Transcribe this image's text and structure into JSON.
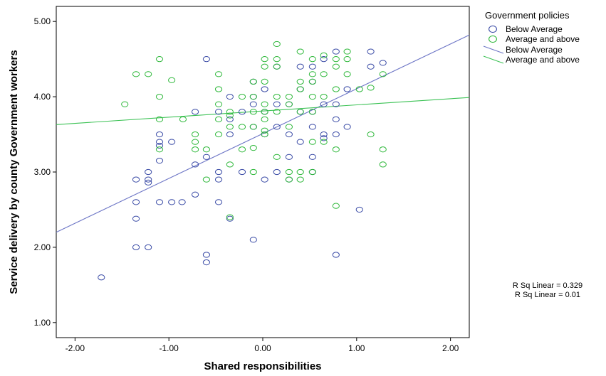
{
  "chart_data": {
    "type": "scatter",
    "xlabel": "Shared responsibilities",
    "ylabel": "Service delivery by county Government workers",
    "xlim": [
      -2.2,
      2.2
    ],
    "ylim": [
      0.8,
      5.2
    ],
    "x_ticks": [
      -2,
      -1,
      0,
      1,
      2
    ],
    "y_ticks": [
      1,
      2,
      3,
      4,
      5
    ],
    "x_tick_labels": [
      "-2.00",
      "-1.00",
      "0.00",
      "1.00",
      "2.00"
    ],
    "y_tick_labels": [
      "1.00",
      "2.00",
      "3.00",
      "4.00",
      "5.00"
    ],
    "grid": false,
    "legend_position": "top-right",
    "legend": {
      "title": "Government policies",
      "entries": [
        {
          "label": "Below Average",
          "kind": "marker",
          "color": "#3a4ba6"
        },
        {
          "label": "Average and above",
          "kind": "marker",
          "color": "#2eb83a"
        },
        {
          "label": "Below Average",
          "kind": "line",
          "color": "#6d76c6"
        },
        {
          "label": "Average and above",
          "kind": "line",
          "color": "#3cc255"
        }
      ]
    },
    "r_squared_labels": [
      "R Sq Linear = 0.329",
      "R Sq Linear = 0.01"
    ],
    "series": [
      {
        "name": "Below Average",
        "color": "#3a4ba6",
        "fit_line": {
          "x": [
            -2.2,
            2.2
          ],
          "y": [
            2.2,
            4.82
          ]
        },
        "points": [
          [
            -1.72,
            1.6
          ],
          [
            -1.35,
            2.9
          ],
          [
            -1.35,
            2.6
          ],
          [
            -1.35,
            2.38
          ],
          [
            -1.35,
            2.0
          ],
          [
            -1.22,
            3.0
          ],
          [
            -1.22,
            2.9
          ],
          [
            -1.22,
            2.86
          ],
          [
            -1.22,
            2.0
          ],
          [
            -1.1,
            3.5
          ],
          [
            -1.1,
            3.4
          ],
          [
            -1.1,
            3.35
          ],
          [
            -1.1,
            3.15
          ],
          [
            -1.1,
            2.6
          ],
          [
            -0.97,
            3.4
          ],
          [
            -0.97,
            2.6
          ],
          [
            -0.86,
            2.6
          ],
          [
            -0.72,
            3.8
          ],
          [
            -0.72,
            3.1
          ],
          [
            -0.72,
            2.7
          ],
          [
            -0.6,
            4.5
          ],
          [
            -0.6,
            3.2
          ],
          [
            -0.6,
            1.9
          ],
          [
            -0.6,
            1.8
          ],
          [
            -0.47,
            3.8
          ],
          [
            -0.47,
            3.0
          ],
          [
            -0.47,
            2.9
          ],
          [
            -0.47,
            2.6
          ],
          [
            -0.35,
            4.0
          ],
          [
            -0.35,
            3.7
          ],
          [
            -0.35,
            3.5
          ],
          [
            -0.35,
            2.38
          ],
          [
            -0.22,
            3.8
          ],
          [
            -0.22,
            3.0
          ],
          [
            -0.1,
            4.2
          ],
          [
            -0.1,
            4.0
          ],
          [
            -0.1,
            3.9
          ],
          [
            -0.1,
            3.6
          ],
          [
            -0.1,
            2.1
          ],
          [
            0.02,
            4.1
          ],
          [
            0.02,
            3.8
          ],
          [
            0.02,
            3.5
          ],
          [
            0.02,
            2.9
          ],
          [
            0.15,
            4.4
          ],
          [
            0.15,
            3.9
          ],
          [
            0.15,
            3.6
          ],
          [
            0.15,
            3.0
          ],
          [
            0.28,
            3.9
          ],
          [
            0.28,
            3.5
          ],
          [
            0.28,
            3.2
          ],
          [
            0.28,
            2.9
          ],
          [
            0.4,
            4.4
          ],
          [
            0.4,
            4.1
          ],
          [
            0.4,
            3.8
          ],
          [
            0.4,
            3.4
          ],
          [
            0.53,
            4.4
          ],
          [
            0.53,
            4.2
          ],
          [
            0.53,
            3.8
          ],
          [
            0.53,
            3.6
          ],
          [
            0.53,
            3.2
          ],
          [
            0.53,
            3.0
          ],
          [
            0.65,
            4.5
          ],
          [
            0.65,
            3.9
          ],
          [
            0.65,
            3.5
          ],
          [
            0.65,
            3.45
          ],
          [
            0.78,
            4.6
          ],
          [
            0.78,
            3.9
          ],
          [
            0.78,
            3.7
          ],
          [
            0.78,
            3.5
          ],
          [
            0.78,
            1.9
          ],
          [
            0.9,
            4.1
          ],
          [
            0.9,
            3.6
          ],
          [
            1.03,
            2.5
          ],
          [
            1.15,
            4.6
          ],
          [
            1.15,
            4.4
          ],
          [
            1.28,
            4.45
          ]
        ]
      },
      {
        "name": "Average and above",
        "color": "#2eb83a",
        "fit_line": {
          "x": [
            -2.2,
            2.2
          ],
          "y": [
            3.63,
            3.99
          ]
        },
        "points": [
          [
            -1.47,
            3.9
          ],
          [
            -1.35,
            4.3
          ],
          [
            -1.22,
            4.3
          ],
          [
            -1.1,
            4.5
          ],
          [
            -1.1,
            4.0
          ],
          [
            -1.1,
            3.7
          ],
          [
            -1.1,
            3.3
          ],
          [
            -0.97,
            4.22
          ],
          [
            -0.85,
            3.7
          ],
          [
            -0.72,
            3.5
          ],
          [
            -0.72,
            3.4
          ],
          [
            -0.72,
            3.3
          ],
          [
            -0.6,
            2.9
          ],
          [
            -0.6,
            3.3
          ],
          [
            -0.47,
            4.3
          ],
          [
            -0.47,
            4.1
          ],
          [
            -0.47,
            3.9
          ],
          [
            -0.47,
            3.7
          ],
          [
            -0.47,
            3.5
          ],
          [
            -0.35,
            3.8
          ],
          [
            -0.35,
            3.75
          ],
          [
            -0.35,
            3.6
          ],
          [
            -0.35,
            3.1
          ],
          [
            -0.35,
            2.4
          ],
          [
            -0.22,
            4.0
          ],
          [
            -0.22,
            3.6
          ],
          [
            -0.22,
            3.3
          ],
          [
            -0.1,
            4.2
          ],
          [
            -0.1,
            4.0
          ],
          [
            -0.1,
            3.8
          ],
          [
            -0.1,
            3.6
          ],
          [
            -0.1,
            3.32
          ],
          [
            -0.1,
            3.0
          ],
          [
            0.02,
            4.5
          ],
          [
            0.02,
            4.4
          ],
          [
            0.02,
            4.2
          ],
          [
            0.02,
            3.9
          ],
          [
            0.02,
            3.8
          ],
          [
            0.02,
            3.7
          ],
          [
            0.02,
            3.55
          ],
          [
            0.02,
            3.5
          ],
          [
            0.15,
            4.7
          ],
          [
            0.15,
            4.5
          ],
          [
            0.15,
            4.4
          ],
          [
            0.15,
            4.0
          ],
          [
            0.15,
            3.8
          ],
          [
            0.15,
            3.2
          ],
          [
            0.28,
            4.0
          ],
          [
            0.28,
            3.9
          ],
          [
            0.28,
            3.6
          ],
          [
            0.28,
            3.0
          ],
          [
            0.28,
            2.9
          ],
          [
            0.4,
            4.6
          ],
          [
            0.4,
            4.2
          ],
          [
            0.4,
            4.1
          ],
          [
            0.4,
            3.8
          ],
          [
            0.4,
            3.0
          ],
          [
            0.4,
            2.9
          ],
          [
            0.53,
            4.5
          ],
          [
            0.53,
            4.3
          ],
          [
            0.53,
            4.2
          ],
          [
            0.53,
            4.0
          ],
          [
            0.53,
            3.8
          ],
          [
            0.53,
            3.4
          ],
          [
            0.53,
            3.0
          ],
          [
            0.65,
            4.55
          ],
          [
            0.65,
            4.3
          ],
          [
            0.65,
            4.0
          ],
          [
            0.65,
            3.4
          ],
          [
            0.78,
            4.5
          ],
          [
            0.78,
            4.4
          ],
          [
            0.78,
            4.1
          ],
          [
            0.78,
            3.3
          ],
          [
            0.78,
            2.55
          ],
          [
            0.9,
            4.6
          ],
          [
            0.9,
            4.5
          ],
          [
            0.9,
            4.3
          ],
          [
            1.03,
            4.1
          ],
          [
            1.15,
            4.12
          ],
          [
            1.15,
            3.5
          ],
          [
            1.28,
            4.3
          ],
          [
            1.28,
            3.3
          ],
          [
            1.28,
            3.1
          ]
        ]
      }
    ]
  }
}
